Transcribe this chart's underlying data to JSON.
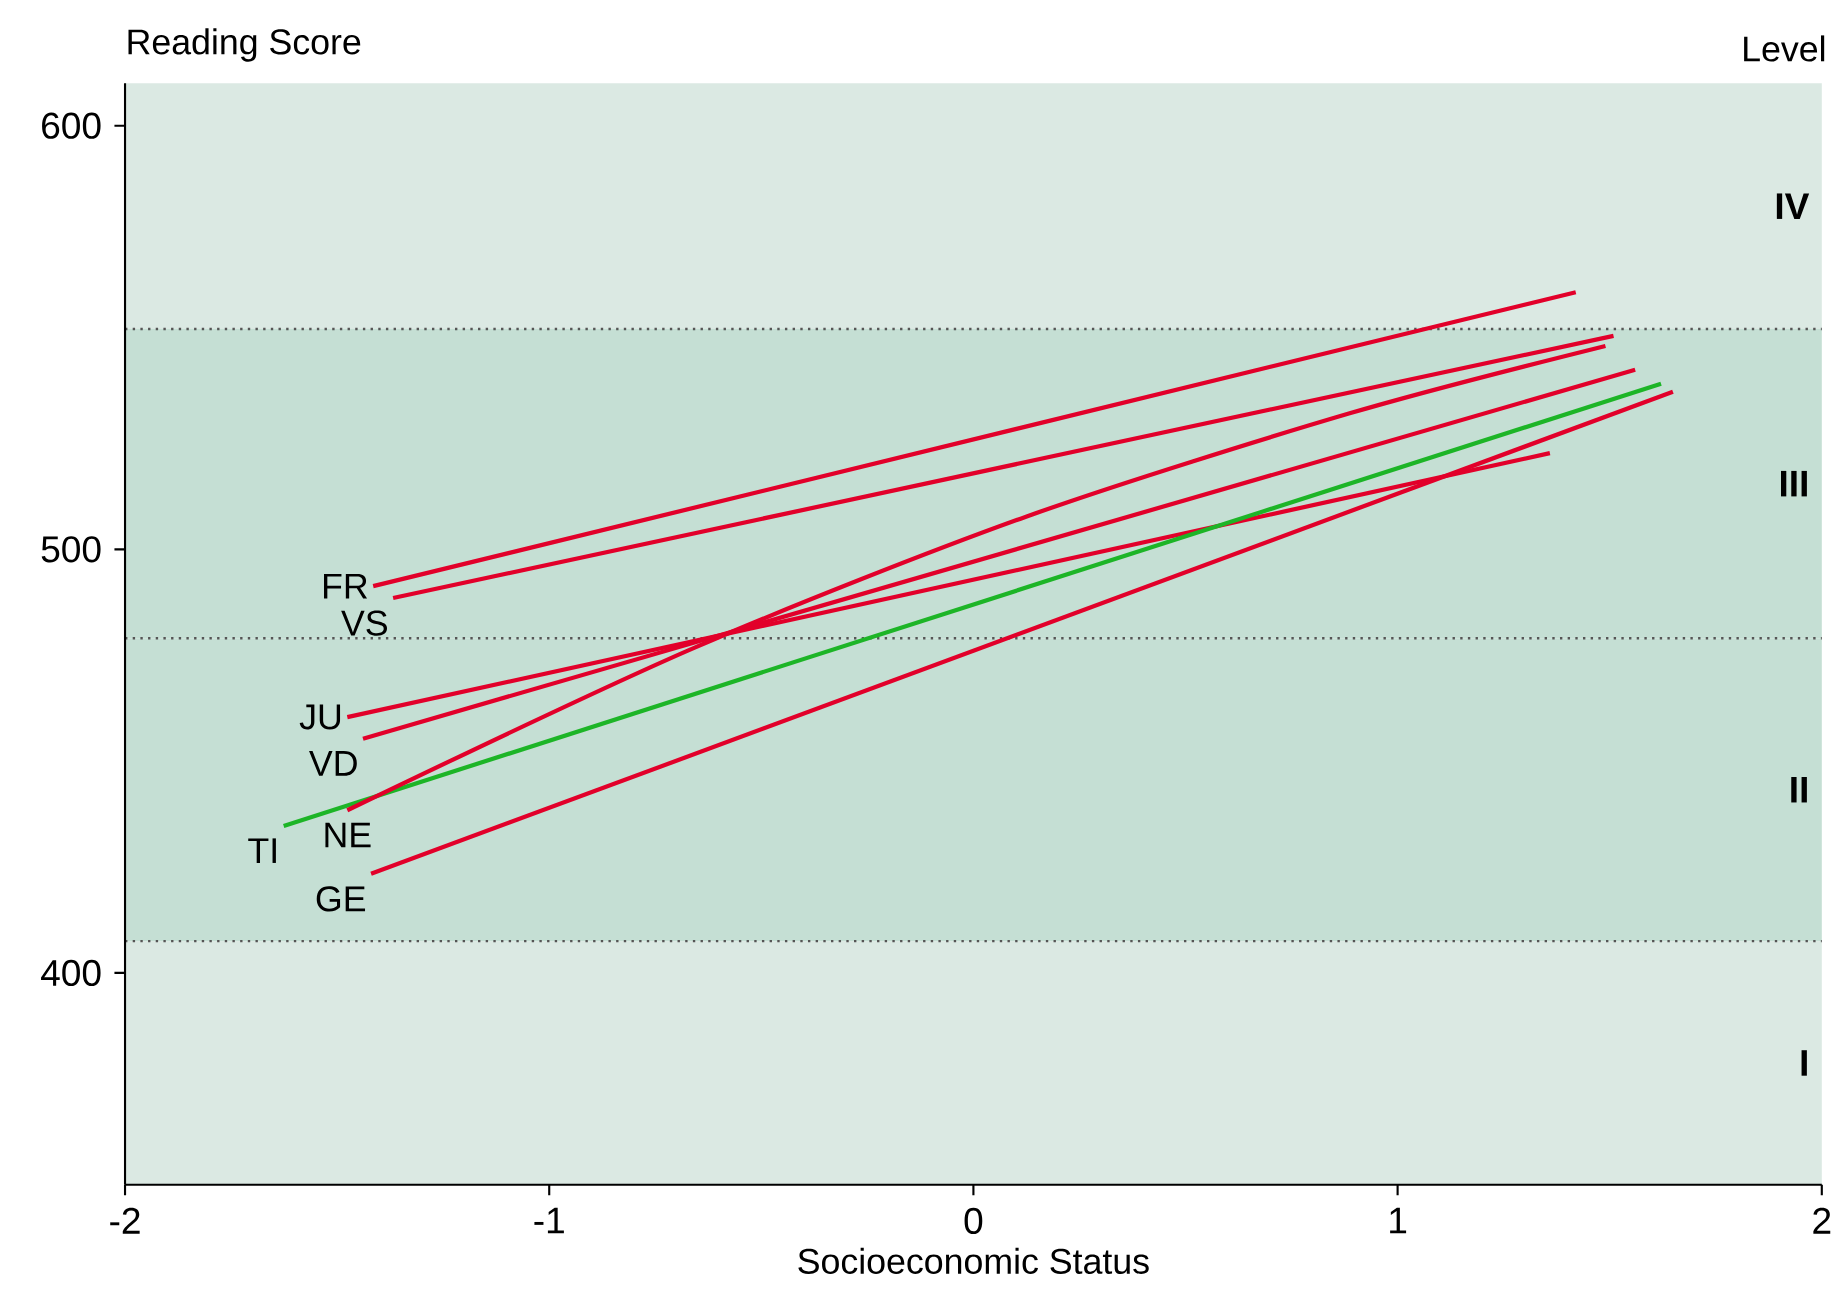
{
  "chart_data": {
    "type": "line",
    "ylabel": "Reading Score",
    "xlabel": "Socioeconomic Status",
    "annotations": [
      "Level"
    ],
    "xlim": [
      -2,
      2
    ],
    "ylim": [
      350,
      610
    ],
    "xticks": [
      -2,
      -1,
      0,
      1,
      2
    ],
    "yticks": [
      400,
      500,
      600
    ],
    "bands": [
      {
        "axis": "y",
        "from": 350,
        "to": 407.5,
        "label": "I",
        "color": "#dbe9e3"
      },
      {
        "axis": "y",
        "from": 407.5,
        "to": 479,
        "label": "II",
        "color": "#c5dfd4"
      },
      {
        "axis": "y",
        "from": 479,
        "to": 552,
        "label": "III",
        "color": "#c5dfd4"
      },
      {
        "axis": "y",
        "from": 552,
        "to": 610,
        "label": "IV",
        "color": "#dbe9e3"
      }
    ],
    "ref_lines": [
      {
        "axis": "y",
        "value": 407.5,
        "color": "#555555",
        "line_style": "dotted"
      },
      {
        "axis": "y",
        "value": 479,
        "color": "#555555",
        "line_style": "dotted"
      },
      {
        "axis": "y",
        "value": 552,
        "color": "#555555",
        "line_style": "dotted"
      }
    ],
    "series": [
      {
        "name": "FR",
        "color": "#e2002a",
        "x": [
          -1.415,
          1.42
        ],
        "values": [
          491.3,
          560.7
        ]
      },
      {
        "name": "VS",
        "color": "#e2002a",
        "x": [
          -1.368,
          1.509
        ],
        "values": [
          488.5,
          550.4
        ]
      },
      {
        "name": "JU",
        "color": "#e2002a",
        "x": [
          -1.476,
          1.359
        ],
        "values": [
          460.4,
          522.7
        ]
      },
      {
        "name": "VD",
        "color": "#e2002a",
        "x": [
          -1.439,
          1.56
        ],
        "values": [
          455.3,
          542.4
        ]
      },
      {
        "name": "TI",
        "color": "#1db527",
        "x": [
          -1.626,
          1.621
        ],
        "values": [
          434.7,
          539.1
        ]
      },
      {
        "name": "NE",
        "color": "#e2002a",
        "x": [
          -1.476,
          -0.657,
          0.124,
          0.887,
          1.49
        ],
        "values": [
          438.4,
          476.8,
          507.7,
          532.1,
          548.0
        ]
      },
      {
        "name": "GE",
        "color": "#e2002a",
        "x": [
          -1.42,
          1.649
        ],
        "values": [
          423.4,
          537.2
        ]
      }
    ]
  }
}
